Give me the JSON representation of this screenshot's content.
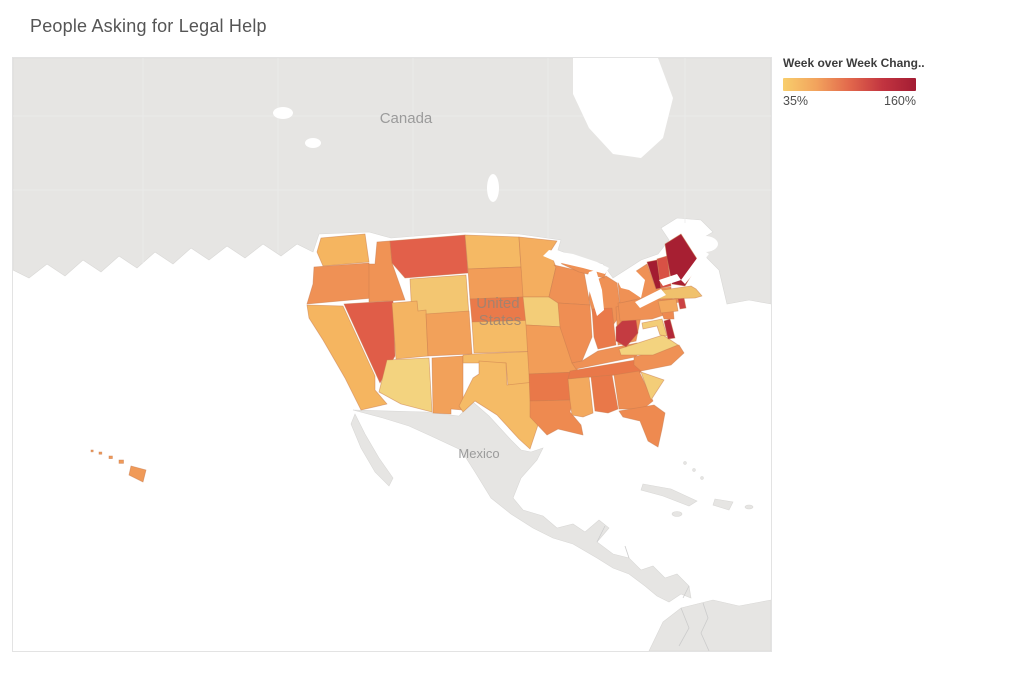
{
  "page": {
    "title": "People Asking for Legal Help"
  },
  "legend": {
    "title": "Week over Week Chang..",
    "min_label": "35%",
    "max_label": "160%",
    "gradient_stops": [
      "#f8ce6c",
      "#f2a35d",
      "#e2684c",
      "#c23440",
      "#a31c33"
    ]
  },
  "map": {
    "labels": {
      "canada": "Canada",
      "mexico": "Mexico",
      "us_line1": "United",
      "us_line2": "States"
    },
    "land_color": "#e6e5e3",
    "ocean_color": "#ffffff",
    "country_border_color": "#cccccc",
    "state_border_color": "#c97b4e"
  },
  "chart_data": {
    "type": "heatmap",
    "subtype": "choropleth_map",
    "title": "People Asking for Legal Help",
    "metric": "Week over Week Change",
    "unit": "%",
    "region": "United States",
    "legend_position": "top-right",
    "scale": {
      "min": 35,
      "max": 160,
      "min_color": "#f8ce6c",
      "max_color": "#a31c33"
    },
    "states": [
      {
        "id": "WA",
        "name": "Washington",
        "value": 60,
        "color": "#f5b560"
      },
      {
        "id": "OR",
        "name": "Oregon",
        "value": 80,
        "color": "#ef9155"
      },
      {
        "id": "CA",
        "name": "California",
        "value": 60,
        "color": "#f5b560"
      },
      {
        "id": "NV",
        "name": "Nevada",
        "value": 110,
        "color": "#e05d48"
      },
      {
        "id": "ID",
        "name": "Idaho",
        "value": 78,
        "color": "#f09355"
      },
      {
        "id": "MT",
        "name": "Montana",
        "value": 108,
        "color": "#e2604a"
      },
      {
        "id": "WY",
        "name": "Wyoming",
        "value": 55,
        "color": "#f3c671"
      },
      {
        "id": "UT",
        "name": "Utah",
        "value": 62,
        "color": "#f4b462"
      },
      {
        "id": "CO",
        "name": "Colorado",
        "value": 70,
        "color": "#f2a15a"
      },
      {
        "id": "AZ",
        "name": "Arizona",
        "value": 45,
        "color": "#f3d37f"
      },
      {
        "id": "NM",
        "name": "New Mexico",
        "value": 70,
        "color": "#f2a15a"
      },
      {
        "id": "ND",
        "name": "North Dakota",
        "value": 60,
        "color": "#f5b964"
      },
      {
        "id": "SD",
        "name": "South Dakota",
        "value": 72,
        "color": "#f29d58"
      },
      {
        "id": "NE",
        "name": "Nebraska",
        "value": 92,
        "color": "#ea7a4a"
      },
      {
        "id": "KS",
        "name": "Kansas",
        "value": 60,
        "color": "#f5bb66"
      },
      {
        "id": "OK",
        "name": "Oklahoma",
        "value": 60,
        "color": "#f5bb66"
      },
      {
        "id": "TX",
        "name": "Texas",
        "value": 60,
        "color": "#f5bb66"
      },
      {
        "id": "MN",
        "name": "Minnesota",
        "value": 65,
        "color": "#f4ae5f"
      },
      {
        "id": "IA",
        "name": "Iowa",
        "value": 50,
        "color": "#f3cd78"
      },
      {
        "id": "MO",
        "name": "Missouri",
        "value": 72,
        "color": "#f29d58"
      },
      {
        "id": "AR",
        "name": "Arkansas",
        "value": 94,
        "color": "#e97849"
      },
      {
        "id": "LA",
        "name": "Louisiana",
        "value": 82,
        "color": "#ee8a50"
      },
      {
        "id": "WI",
        "name": "Wisconsin",
        "value": 80,
        "color": "#ef9155"
      },
      {
        "id": "IL",
        "name": "Illinois",
        "value": 80,
        "color": "#ef8e53"
      },
      {
        "id": "MI",
        "name": "Michigan",
        "value": 80,
        "color": "#ef9155"
      },
      {
        "id": "IN",
        "name": "Indiana",
        "value": 92,
        "color": "#ea7a4a"
      },
      {
        "id": "OH",
        "name": "Ohio",
        "value": 80,
        "color": "#ef9155"
      },
      {
        "id": "KY",
        "name": "Kentucky",
        "value": 78,
        "color": "#ef9155"
      },
      {
        "id": "TN",
        "name": "Tennessee",
        "value": 94,
        "color": "#e97849"
      },
      {
        "id": "MS",
        "name": "Mississippi",
        "value": 65,
        "color": "#f3a95e"
      },
      {
        "id": "AL",
        "name": "Alabama",
        "value": 94,
        "color": "#e97849"
      },
      {
        "id": "GA",
        "name": "Georgia",
        "value": 80,
        "color": "#ee8d52"
      },
      {
        "id": "FL",
        "name": "Florida",
        "value": 82,
        "color": "#ee8a50"
      },
      {
        "id": "SC",
        "name": "South Carolina",
        "value": 50,
        "color": "#f3cd78"
      },
      {
        "id": "NC",
        "name": "North Carolina",
        "value": 80,
        "color": "#ef9155"
      },
      {
        "id": "VA",
        "name": "Virginia",
        "value": 45,
        "color": "#f3d37f"
      },
      {
        "id": "WV",
        "name": "West Virginia",
        "value": 126,
        "color": "#c43b41"
      },
      {
        "id": "MD",
        "name": "Maryland",
        "value": 50,
        "color": "#f3cd78"
      },
      {
        "id": "DE",
        "name": "Delaware",
        "value": 140,
        "color": "#b22839"
      },
      {
        "id": "PA",
        "name": "Pennsylvania",
        "value": 80,
        "color": "#ef9155"
      },
      {
        "id": "NJ",
        "name": "New Jersey",
        "value": 82,
        "color": "#ee8a50"
      },
      {
        "id": "NY",
        "name": "New York",
        "value": 80,
        "color": "#ef9155"
      },
      {
        "id": "CT",
        "name": "Connecticut",
        "value": 65,
        "color": "#f3a95e"
      },
      {
        "id": "RI",
        "name": "Rhode Island",
        "value": 122,
        "color": "#cb4243"
      },
      {
        "id": "MA",
        "name": "Massachusetts",
        "value": 55,
        "color": "#f0c16c"
      },
      {
        "id": "VT",
        "name": "Vermont",
        "value": 152,
        "color": "#a31c31"
      },
      {
        "id": "NH",
        "name": "New Hampshire",
        "value": 115,
        "color": "#d85145"
      },
      {
        "id": "ME",
        "name": "Maine",
        "value": 150,
        "color": "#a71f32"
      },
      {
        "id": "HI",
        "name": "Hawaii",
        "value": 72,
        "color": "#f09a58"
      }
    ]
  }
}
